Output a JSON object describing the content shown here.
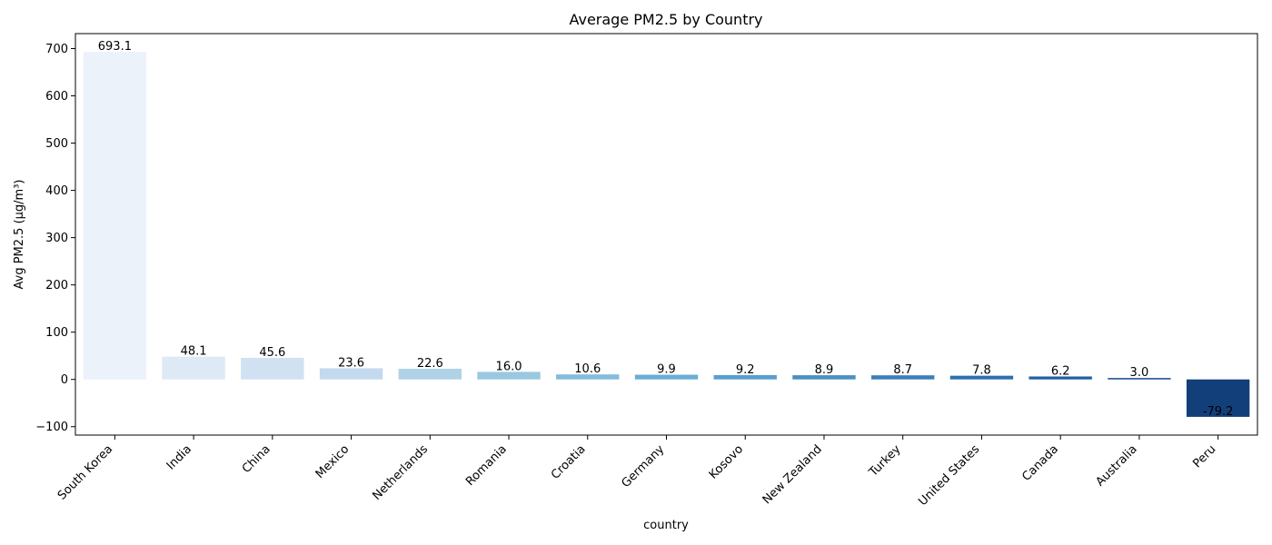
{
  "chart_data": {
    "type": "bar",
    "title": "Average PM2.5 by Country",
    "xlabel": "country",
    "ylabel": "Avg PM2.5 (µg/m³)",
    "ylim": [
      -117.8,
      731.7
    ],
    "yticks": [
      -100,
      0,
      100,
      200,
      300,
      400,
      500,
      600,
      700
    ],
    "grid": false,
    "categories": [
      "South Korea",
      "India",
      "China",
      "Mexico",
      "Netherlands",
      "Romania",
      "Croatia",
      "Germany",
      "Kosovo",
      "New Zealand",
      "Turkey",
      "United States",
      "Canada",
      "Australia",
      "Peru"
    ],
    "values": [
      693.1,
      48.1,
      45.6,
      23.6,
      22.6,
      16.0,
      10.6,
      9.9,
      9.2,
      8.9,
      8.7,
      7.8,
      6.2,
      3.0,
      -79.2
    ],
    "value_labels": [
      "693.1",
      "48.1",
      "45.6",
      "23.6",
      "22.6",
      "16.0",
      "10.6",
      "9.9",
      "9.2",
      "8.9",
      "8.7",
      "7.8",
      "6.2",
      "3.0",
      "-79.2"
    ],
    "colors": [
      "#ebf2fa",
      "#dde9f5",
      "#d0e1f2",
      "#c2d9ee",
      "#b0d2e7",
      "#9ac8e0",
      "#84bcdb",
      "#6cadd4",
      "#599fcd",
      "#4a90c4",
      "#3a7fbb",
      "#2c6fb0",
      "#1f5fa6",
      "#174f95",
      "#123f7a"
    ]
  }
}
